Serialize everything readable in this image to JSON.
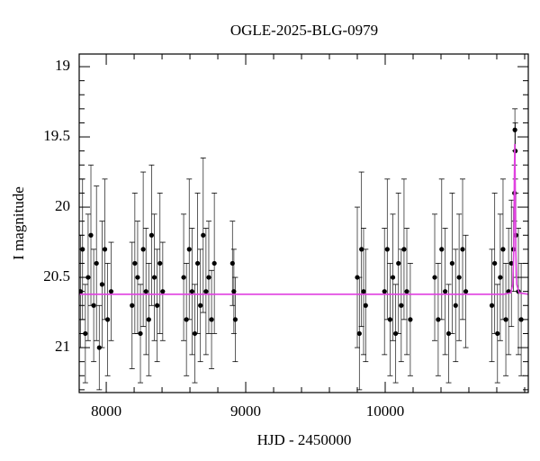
{
  "chart_data": {
    "type": "scatter",
    "title": "OGLE-2025-BLG-0979",
    "xlabel": "HJD - 2450000",
    "ylabel": "I magnitude",
    "xlim": [
      7806,
      11026
    ],
    "ylim": [
      18.91,
      21.32
    ],
    "y_inverted": true,
    "xticks": [
      8000,
      9000,
      10000
    ],
    "xminorticks": [
      7800,
      8200,
      8400,
      8600,
      8800,
      9200,
      9400,
      9600,
      9800,
      10200,
      10400,
      10600,
      10800,
      11000
    ],
    "yticks": [
      19,
      19.5,
      20,
      20.5,
      21
    ],
    "yminorticks": [
      19.1,
      19.2,
      19.3,
      19.4,
      19.6,
      19.7,
      19.8,
      19.9,
      20.1,
      20.2,
      20.3,
      20.4,
      20.6,
      20.7,
      20.8,
      20.9,
      21.1,
      21.2,
      21.3
    ],
    "series": [
      {
        "color": "#000000",
        "x": [
          7815,
          7830,
          7850,
          7870,
          7890,
          7910,
          7930,
          7950,
          7970,
          7990,
          8010,
          8035,
          8185,
          8205,
          8225,
          8245,
          8265,
          8285,
          8305,
          8325,
          8345,
          8365,
          8385,
          8405,
          8555,
          8575,
          8595,
          8615,
          8635,
          8655,
          8675,
          8695,
          8715,
          8735,
          8755,
          8775,
          8905,
          8915,
          8925,
          9800,
          9815,
          9830,
          9845,
          9860,
          9995,
          10015,
          10035,
          10055,
          10075,
          10095,
          10115,
          10135,
          10155,
          10180,
          10355,
          10380,
          10405,
          10430,
          10455,
          10480,
          10505,
          10530,
          10555,
          10578,
          10765,
          10785,
          10805,
          10825,
          10845,
          10865,
          10885,
          10905,
          10920,
          10927,
          10930,
          10933,
          10937,
          10955,
          10975
        ],
        "values": [
          20.6,
          20.3,
          20.9,
          20.5,
          20.2,
          20.7,
          20.4,
          21.0,
          20.55,
          20.3,
          20.8,
          20.6,
          20.7,
          20.4,
          20.5,
          20.9,
          20.3,
          20.6,
          20.8,
          20.2,
          20.5,
          20.7,
          20.4,
          20.6,
          20.5,
          20.8,
          20.3,
          20.6,
          20.9,
          20.4,
          20.7,
          20.2,
          20.6,
          20.5,
          20.8,
          20.4,
          20.4,
          20.6,
          20.8,
          20.5,
          20.9,
          20.3,
          20.6,
          20.7,
          20.6,
          20.3,
          20.8,
          20.5,
          20.9,
          20.4,
          20.7,
          20.3,
          20.6,
          20.8,
          20.5,
          20.8,
          20.3,
          20.6,
          20.9,
          20.4,
          20.7,
          20.5,
          20.3,
          20.6,
          20.7,
          20.4,
          20.9,
          20.5,
          20.3,
          20.8,
          20.6,
          20.4,
          20.3,
          19.9,
          19.45,
          19.6,
          20.2,
          20.6,
          20.8
        ],
        "errors": [
          0.4,
          0.5,
          0.35,
          0.45,
          0.5,
          0.4,
          0.55,
          0.3,
          0.45,
          0.5,
          0.4,
          0.35,
          0.45,
          0.5,
          0.4,
          0.35,
          0.55,
          0.45,
          0.4,
          0.5,
          0.45,
          0.4,
          0.5,
          0.35,
          0.45,
          0.4,
          0.5,
          0.45,
          0.35,
          0.5,
          0.4,
          0.55,
          0.45,
          0.4,
          0.35,
          0.5,
          0.3,
          0.3,
          0.3,
          0.5,
          0.4,
          0.55,
          0.45,
          0.4,
          0.45,
          0.5,
          0.4,
          0.45,
          0.35,
          0.5,
          0.4,
          0.5,
          0.45,
          0.4,
          0.45,
          0.4,
          0.5,
          0.45,
          0.35,
          0.5,
          0.4,
          0.45,
          0.5,
          0.4,
          0.4,
          0.5,
          0.35,
          0.45,
          0.5,
          0.4,
          0.45,
          0.45,
          0.3,
          0.2,
          0.15,
          0.2,
          0.3,
          0.45,
          0.4
        ]
      },
      {
        "color": "#e040e0",
        "style": "line",
        "x": [
          7806,
          10850,
          10900,
          10915,
          10922,
          10926,
          10929,
          10932,
          10936,
          10943,
          10960,
          11026
        ],
        "values": [
          20.62,
          20.62,
          20.61,
          20.55,
          20.3,
          19.8,
          19.55,
          19.8,
          20.3,
          20.55,
          20.61,
          20.62
        ]
      }
    ]
  }
}
